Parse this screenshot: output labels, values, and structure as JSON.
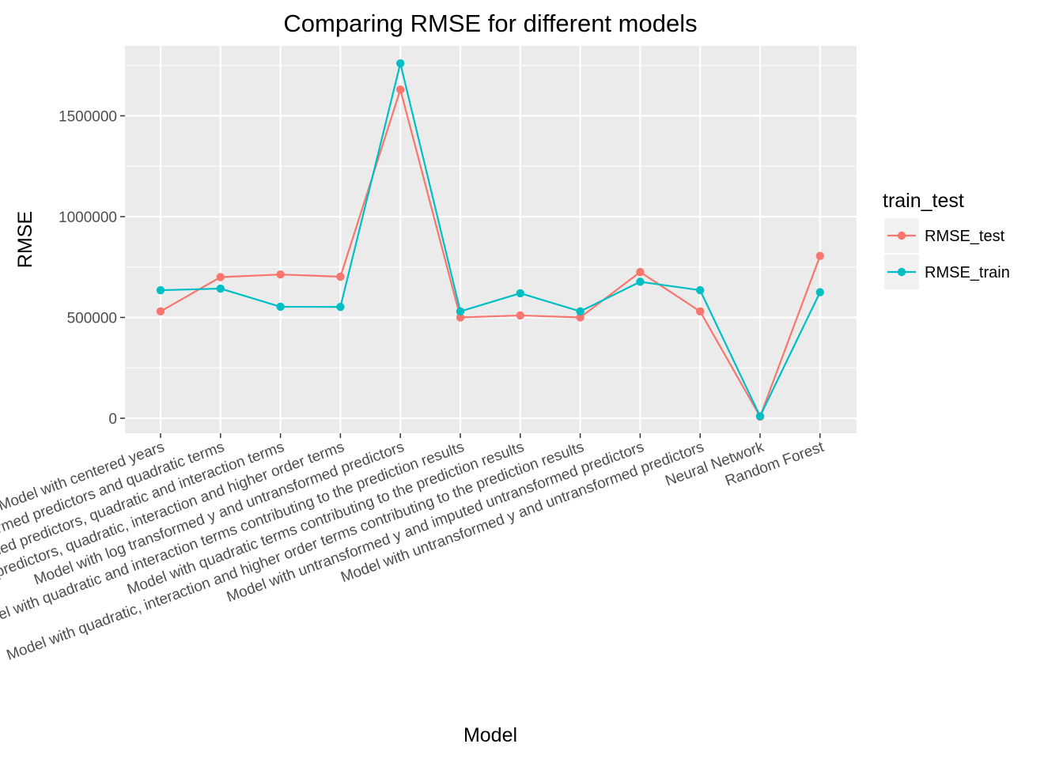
{
  "chart_data": {
    "type": "line",
    "title": "Comparing RMSE for different models",
    "xlabel": "Model",
    "ylabel": "RMSE",
    "ylim": [
      -60000,
      1800000
    ],
    "yticks": [
      0,
      500000,
      1000000,
      1500000
    ],
    "ytick_labels": [
      "0",
      "500000",
      "1000000",
      "1500000"
    ],
    "grid": true,
    "legend": {
      "title": "train_test",
      "placement": "right"
    },
    "categories": [
      "Model with centered years",
      "Model with untransformed predictors and quadratic terms",
      "Model with untransformed predictors, quadratic and interaction terms",
      "Model with untransformed predictors, quadratic, interaction and higher order terms",
      "Model with log transformed y and untransformed predictors",
      "Model with quadratic and interaction terms contributing to the prediction results",
      "Model with quadratic terms contributing to the prediction results",
      "Model with quadratic, interaction and higher order terms contributing to the prediction results",
      "Model with untransformed y and imputed untransformed predictors",
      "Model with untransformed y and untransformed predictors",
      "Neural Network",
      "Random Forest"
    ],
    "series": [
      {
        "name": "RMSE_test",
        "color": "#F8766D",
        "values": [
          530000,
          700000,
          713000,
          702000,
          1630000,
          500000,
          510000,
          500000,
          725000,
          530000,
          8000,
          805000
        ]
      },
      {
        "name": "RMSE_train",
        "color": "#00BFC4",
        "values": [
          635000,
          643000,
          553000,
          552000,
          1760000,
          530000,
          620000,
          530000,
          677000,
          635000,
          10000,
          625000
        ]
      }
    ]
  }
}
